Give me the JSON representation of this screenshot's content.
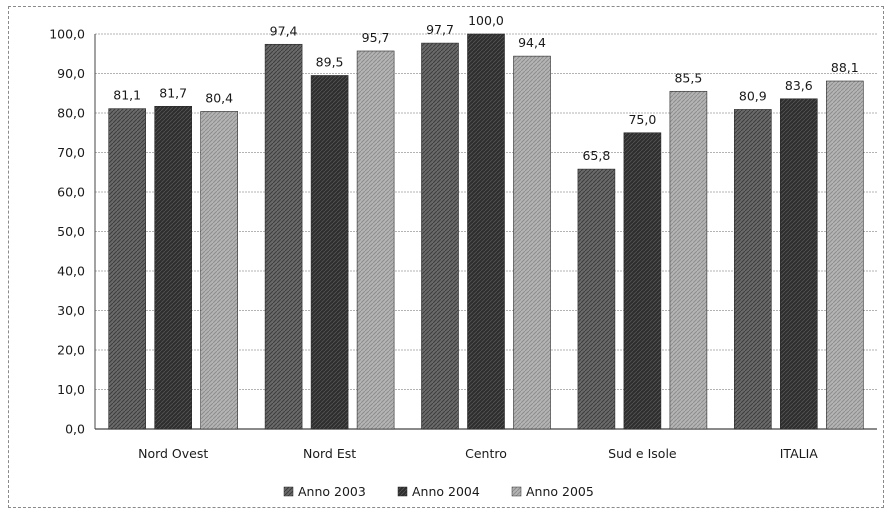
{
  "chart_data": {
    "type": "bar",
    "title": "",
    "xlabel": "",
    "ylabel": "",
    "categories": [
      "Nord Ovest",
      "Nord Est",
      "Centro",
      "Sud e Isole",
      "ITALIA"
    ],
    "series": [
      {
        "name": "Anno 2003",
        "values": [
          81.1,
          97.4,
          97.7,
          65.8,
          80.9
        ],
        "color": "#5a5a5a"
      },
      {
        "name": "Anno 2004",
        "values": [
          81.7,
          89.5,
          100.0,
          75.0,
          83.6
        ],
        "color": "#303030"
      },
      {
        "name": "Anno 2005",
        "values": [
          80.4,
          95.7,
          94.4,
          85.5,
          88.1
        ],
        "color": "#a8a8a8"
      }
    ],
    "value_labels": [
      [
        "81,1",
        "97,4",
        "97,7",
        "65,8",
        "80,9"
      ],
      [
        "81,7",
        "89,5",
        "100,0",
        "75,0",
        "83,6"
      ],
      [
        "80,4",
        "95,7",
        "94,4",
        "85,5",
        "88,1"
      ]
    ],
    "ylim": [
      0,
      100
    ],
    "y_ticks": [
      0,
      10,
      20,
      30,
      40,
      50,
      60,
      70,
      80,
      90,
      100
    ],
    "y_tick_labels": [
      "0,0",
      "10,0",
      "20,0",
      "30,0",
      "40,0",
      "50,0",
      "60,0",
      "70,0",
      "80,0",
      "90,0",
      "100,0"
    ],
    "grid": true,
    "legend_position": "bottom"
  }
}
